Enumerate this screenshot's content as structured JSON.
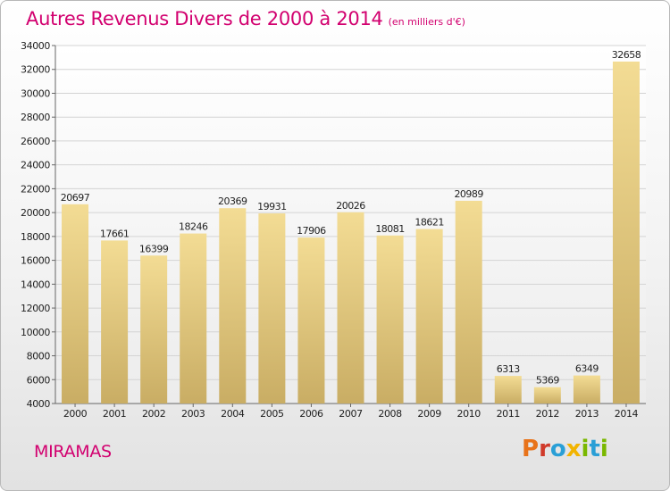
{
  "header": {
    "title": "Autres Revenus Divers de 2000 à 2014",
    "unit": "(en milliers d'€)"
  },
  "footer": {
    "town": "MIRAMAS",
    "logo_text": "Proxiti",
    "logo_colors": [
      "#e8731a",
      "#d03a2a",
      "#2a9fd6",
      "#f2b400",
      "#7ab800",
      "#2a9fd6",
      "#7ab800"
    ]
  },
  "chart_data": {
    "type": "bar",
    "categories": [
      "2000",
      "2001",
      "2002",
      "2003",
      "2004",
      "2005",
      "2006",
      "2007",
      "2008",
      "2009",
      "2010",
      "2011",
      "2012",
      "2013",
      "2014"
    ],
    "values": [
      20697,
      17661,
      16399,
      18246,
      20369,
      19931,
      17906,
      20026,
      18081,
      18621,
      20989,
      6313,
      5369,
      6349,
      32658
    ],
    "data_labels": [
      "20697",
      "17661",
      "16399",
      "18246",
      "20369",
      "19931",
      "17906",
      "20026",
      "18081",
      "18621",
      "20989",
      "6313",
      "5369",
      "6349",
      "32658"
    ],
    "ylim": [
      4000,
      34000
    ],
    "y_ticks": [
      "4000",
      "6000",
      "8000",
      "10000",
      "12000",
      "14000",
      "16000",
      "18000",
      "20000",
      "22000",
      "24000",
      "26000",
      "28000",
      "30000",
      "32000",
      "34000"
    ],
    "grid": true,
    "bar_color_light": "#f3dc94",
    "bar_color_dark": "#c9ad64"
  }
}
